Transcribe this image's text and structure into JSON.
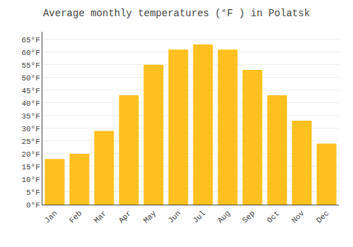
{
  "chart_data": {
    "type": "bar",
    "title": "Average monthly temperatures (°F ) in Polatsk",
    "categories": [
      "Jan",
      "Feb",
      "Mar",
      "Apr",
      "May",
      "Jun",
      "Jul",
      "Aug",
      "Sep",
      "Oct",
      "Nov",
      "Dec"
    ],
    "values": [
      18,
      20,
      29,
      43,
      55,
      61,
      63,
      61,
      53,
      43,
      33,
      24
    ],
    "color": "#FFC020",
    "ylim": [
      0,
      68
    ],
    "yticks": [
      {
        "value": 0,
        "label": "0°F"
      },
      {
        "value": 5,
        "label": "5°F"
      },
      {
        "value": 10,
        "label": "10°F"
      },
      {
        "value": 15,
        "label": "15°F"
      },
      {
        "value": 20,
        "label": "20°F"
      },
      {
        "value": 25,
        "label": "25°F"
      },
      {
        "value": 30,
        "label": "30°F"
      },
      {
        "value": 35,
        "label": "35°F"
      },
      {
        "value": 40,
        "label": "40°F"
      },
      {
        "value": 45,
        "label": "45°F"
      },
      {
        "value": 50,
        "label": "50°F"
      },
      {
        "value": 55,
        "label": "55°F"
      },
      {
        "value": 60,
        "label": "60°F"
      },
      {
        "value": 65,
        "label": "65°F"
      }
    ],
    "grid": true
  }
}
